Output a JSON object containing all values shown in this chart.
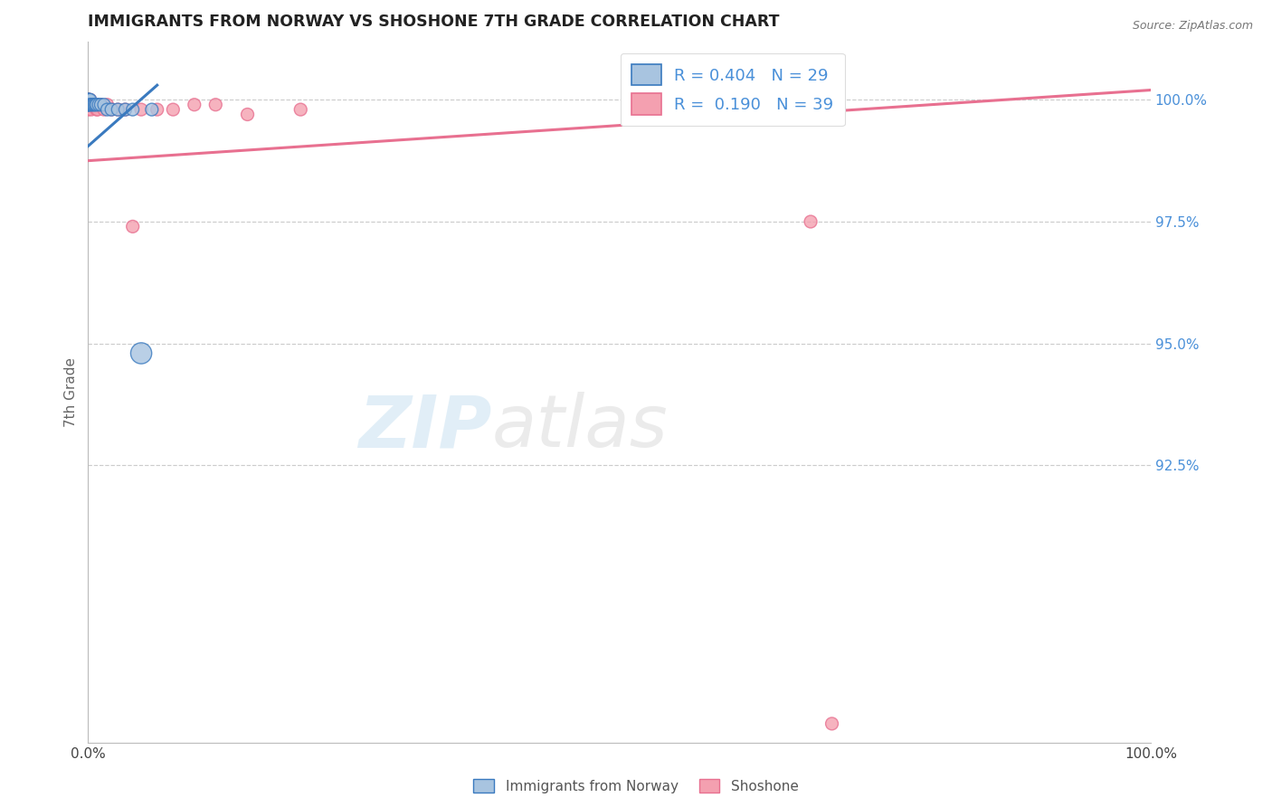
{
  "title": "IMMIGRANTS FROM NORWAY VS SHOSHONE 7TH GRADE CORRELATION CHART",
  "source": "Source: ZipAtlas.com",
  "ylabel": "7th Grade",
  "xlim": [
    0.0,
    1.0
  ],
  "ylim": [
    0.868,
    1.012
  ],
  "yticks": [
    0.925,
    0.95,
    0.975,
    1.0
  ],
  "ytick_labels": [
    "92.5%",
    "95.0%",
    "97.5%",
    "100.0%"
  ],
  "xticks": [
    0.0,
    1.0
  ],
  "xtick_labels": [
    "0.0%",
    "100.0%"
  ],
  "r_norway": 0.404,
  "n_norway": 29,
  "r_shoshone": 0.19,
  "n_shoshone": 39,
  "norway_color": "#a8c4e0",
  "shoshone_color": "#f4a0b0",
  "norway_line_color": "#3a7abf",
  "shoshone_line_color": "#e87090",
  "norway_x": [
    0.0,
    0.0,
    0.0,
    0.0,
    0.0,
    0.0,
    0.0,
    0.0,
    0.001,
    0.001,
    0.001,
    0.002,
    0.002,
    0.003,
    0.004,
    0.005,
    0.006,
    0.007,
    0.008,
    0.01,
    0.012,
    0.015,
    0.018,
    0.022,
    0.028,
    0.035,
    0.042,
    0.05,
    0.06
  ],
  "norway_y": [
    1.0,
    1.0,
    1.0,
    1.0,
    0.999,
    0.999,
    0.999,
    0.999,
    1.0,
    1.0,
    0.999,
    1.0,
    0.999,
    0.999,
    0.999,
    0.999,
    0.999,
    0.999,
    0.999,
    0.999,
    0.999,
    0.999,
    0.998,
    0.998,
    0.998,
    0.998,
    0.998,
    0.948,
    0.998
  ],
  "norway_sizes": [
    100,
    100,
    100,
    100,
    100,
    100,
    100,
    100,
    100,
    100,
    100,
    100,
    100,
    100,
    100,
    100,
    100,
    100,
    100,
    100,
    100,
    100,
    100,
    100,
    100,
    100,
    100,
    280,
    100
  ],
  "shoshone_x": [
    0.0,
    0.0,
    0.0,
    0.0,
    0.0,
    0.0,
    0.0,
    0.0,
    0.001,
    0.001,
    0.001,
    0.002,
    0.002,
    0.003,
    0.003,
    0.004,
    0.005,
    0.006,
    0.007,
    0.008,
    0.009,
    0.01,
    0.012,
    0.015,
    0.018,
    0.022,
    0.028,
    0.035,
    0.042,
    0.05,
    0.065,
    0.08,
    0.1,
    0.12,
    0.15,
    0.2,
    0.58,
    0.68,
    0.7
  ],
  "shoshone_y": [
    1.0,
    1.0,
    1.0,
    1.0,
    1.0,
    0.999,
    0.999,
    0.998,
    1.0,
    0.999,
    0.999,
    1.0,
    0.999,
    0.999,
    0.998,
    0.999,
    0.999,
    0.999,
    0.999,
    0.998,
    0.998,
    0.999,
    0.999,
    0.998,
    0.999,
    0.998,
    0.998,
    0.998,
    0.974,
    0.998,
    0.998,
    0.998,
    0.999,
    0.999,
    0.997,
    0.998,
    0.998,
    0.975,
    0.872
  ],
  "shoshone_sizes": [
    100,
    100,
    100,
    100,
    100,
    100,
    100,
    100,
    100,
    100,
    100,
    100,
    100,
    100,
    100,
    100,
    100,
    100,
    100,
    100,
    100,
    100,
    100,
    100,
    100,
    100,
    100,
    100,
    100,
    100,
    100,
    100,
    100,
    100,
    100,
    100,
    100,
    100,
    100
  ],
  "norway_trendline_x": [
    0.0,
    0.065
  ],
  "norway_trendline_y": [
    0.9905,
    1.003
  ],
  "shoshone_trendline_x": [
    0.0,
    1.0
  ],
  "shoshone_trendline_y": [
    0.9875,
    1.002
  ],
  "background_color": "#ffffff",
  "watermark": "ZIPatlas",
  "bottom_legend_norway": "Immigrants from Norway",
  "bottom_legend_shoshone": "Shoshone"
}
